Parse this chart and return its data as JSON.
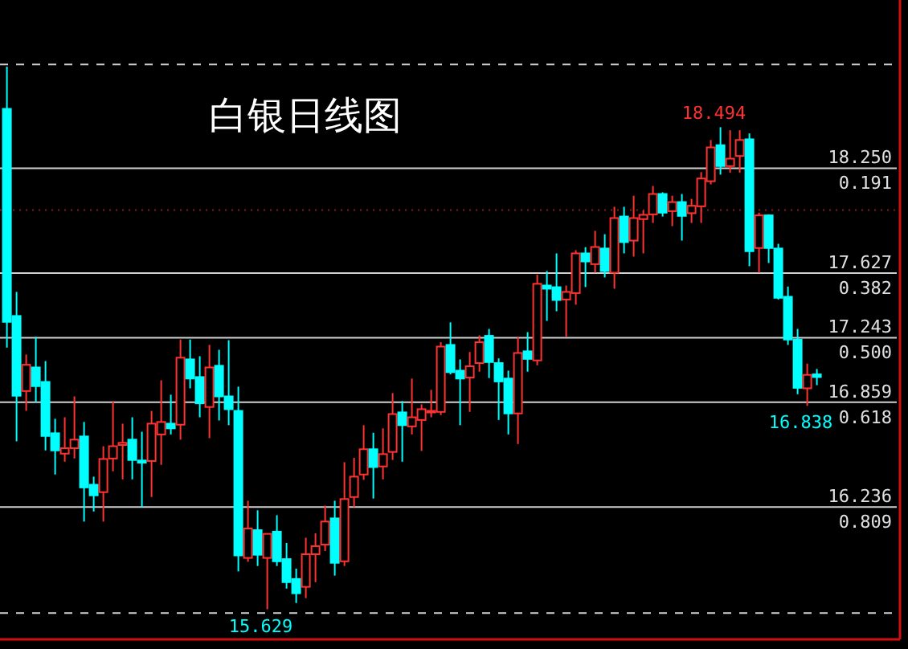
{
  "chart_data": {
    "type": "candlestick",
    "title": "白银日线图",
    "categories": [
      null,
      null,
      null,
      null,
      null,
      null,
      null,
      null,
      null,
      null,
      null,
      null,
      null,
      null,
      null,
      null,
      null,
      null,
      null,
      null,
      null,
      null,
      null,
      null,
      null,
      null,
      null,
      null,
      null,
      null,
      null,
      null,
      null,
      null,
      null,
      null,
      null,
      null,
      null,
      null,
      null,
      null,
      null,
      null,
      null,
      null,
      null,
      null,
      null,
      null,
      null,
      null,
      null,
      null,
      null,
      null,
      null,
      null,
      null,
      null,
      null,
      null,
      null,
      null,
      null,
      null,
      null,
      null,
      null,
      null,
      null,
      null,
      null,
      null,
      null,
      null,
      null,
      null,
      null,
      null,
      null,
      null,
      null,
      null,
      null
    ],
    "ohlc": [
      [
        18.603,
        18.854,
        17.184,
        17.337
      ],
      [
        17.372,
        17.515,
        16.627,
        16.898
      ],
      [
        16.926,
        17.143,
        16.808,
        17.082
      ],
      [
        17.066,
        17.248,
        16.859,
        16.955
      ],
      [
        16.98,
        17.104,
        16.573,
        16.659
      ],
      [
        16.675,
        16.761,
        16.43,
        16.573
      ],
      [
        16.554,
        16.77,
        16.506,
        16.586
      ],
      [
        16.586,
        16.894,
        16.525,
        16.637
      ],
      [
        16.656,
        16.742,
        16.15,
        16.353
      ],
      [
        16.369,
        16.417,
        16.21,
        16.306
      ],
      [
        16.325,
        16.598,
        16.15,
        16.522
      ],
      [
        16.525,
        16.866,
        16.449,
        16.598
      ],
      [
        16.605,
        16.732,
        16.401,
        16.618
      ],
      [
        16.637,
        16.77,
        16.401,
        16.516
      ],
      [
        16.513,
        16.684,
        16.236,
        16.5
      ],
      [
        16.51,
        16.808,
        16.296,
        16.732
      ],
      [
        16.668,
        16.99,
        16.487,
        16.742
      ],
      [
        16.732,
        16.904,
        16.668,
        16.704
      ],
      [
        16.726,
        17.232,
        16.637,
        17.124
      ],
      [
        17.114,
        17.232,
        16.942,
        17.0
      ],
      [
        17.009,
        17.133,
        16.77,
        16.853
      ],
      [
        16.831,
        17.2,
        16.646,
        17.066
      ],
      [
        17.076,
        17.171,
        16.751,
        16.894
      ],
      [
        16.894,
        17.228,
        16.723,
        16.818
      ],
      [
        16.808,
        16.952,
        15.854,
        15.949
      ],
      [
        15.934,
        16.274,
        15.911,
        16.109
      ],
      [
        16.099,
        16.217,
        15.886,
        15.953
      ],
      [
        15.934,
        16.08,
        15.629,
        16.077
      ],
      [
        16.09,
        16.188,
        15.886,
        15.914
      ],
      [
        15.927,
        16.023,
        15.752,
        15.79
      ],
      [
        15.809,
        15.87,
        15.666,
        15.724
      ],
      [
        15.762,
        16.054,
        15.695,
        15.956
      ],
      [
        15.956,
        16.08,
        15.79,
        16.004
      ],
      [
        16.013,
        16.245,
        15.975,
        16.15
      ],
      [
        16.169,
        16.274,
        15.829,
        15.905
      ],
      [
        15.914,
        16.503,
        15.886,
        16.284
      ],
      [
        16.296,
        16.529,
        16.236,
        16.417
      ],
      [
        16.43,
        16.723,
        16.398,
        16.58
      ],
      [
        16.58,
        16.678,
        16.287,
        16.474
      ],
      [
        16.478,
        16.704,
        16.401,
        16.551
      ],
      [
        16.564,
        16.914,
        16.516,
        16.789
      ],
      [
        16.799,
        16.866,
        16.506,
        16.723
      ],
      [
        16.716,
        17.0,
        16.668,
        16.77
      ],
      [
        16.754,
        16.847,
        16.57,
        16.818
      ],
      [
        16.799,
        16.933,
        16.77,
        16.808
      ],
      [
        16.802,
        17.216,
        16.783,
        17.19
      ],
      [
        17.2,
        17.334,
        17.025,
        17.038
      ],
      [
        17.047,
        17.114,
        16.723,
        17.0
      ],
      [
        17.006,
        17.158,
        16.802,
        17.073
      ],
      [
        17.092,
        17.257,
        17.041,
        17.216
      ],
      [
        17.254,
        17.295,
        17.003,
        17.098
      ],
      [
        17.092,
        17.12,
        16.754,
        16.983
      ],
      [
        17.0,
        17.047,
        16.668,
        16.793
      ],
      [
        16.793,
        17.248,
        16.611,
        17.152
      ],
      [
        17.162,
        17.276,
        17.041,
        17.117
      ],
      [
        17.108,
        17.617,
        17.079,
        17.563
      ],
      [
        17.553,
        17.639,
        17.343,
        17.534
      ],
      [
        17.543,
        17.744,
        17.4,
        17.467
      ],
      [
        17.47,
        17.553,
        17.248,
        17.515
      ],
      [
        17.508,
        17.763,
        17.439,
        17.744
      ],
      [
        17.744,
        17.781,
        17.544,
        17.696
      ],
      [
        17.68,
        17.878,
        17.629,
        17.782
      ],
      [
        17.773,
        17.858,
        17.601,
        17.639
      ],
      [
        17.629,
        18.021,
        17.534,
        17.954
      ],
      [
        17.963,
        18.021,
        17.744,
        17.811
      ],
      [
        17.82,
        18.087,
        17.725,
        17.954
      ],
      [
        17.948,
        17.999,
        17.744,
        17.973
      ],
      [
        17.976,
        18.145,
        17.925,
        18.097
      ],
      [
        18.097,
        18.107,
        17.963,
        17.986
      ],
      [
        17.995,
        18.087,
        17.906,
        18.049
      ],
      [
        18.049,
        18.097,
        17.82,
        17.967
      ],
      [
        17.983,
        18.068,
        17.925,
        18.027
      ],
      [
        18.024,
        18.227,
        17.925,
        18.189
      ],
      [
        18.173,
        18.418,
        18.154,
        18.374
      ],
      [
        18.387,
        18.494,
        18.212,
        18.263
      ],
      [
        18.263,
        18.476,
        18.224,
        18.307
      ],
      [
        18.323,
        18.476,
        18.224,
        18.418
      ],
      [
        18.422,
        18.457,
        17.668,
        17.757
      ],
      [
        17.776,
        17.986,
        17.629,
        17.97
      ],
      [
        17.97,
        17.976,
        17.687,
        17.776
      ],
      [
        17.773,
        17.801,
        17.47,
        17.48
      ],
      [
        17.486,
        17.547,
        17.2,
        17.232
      ],
      [
        17.232,
        17.295,
        16.907,
        16.945
      ],
      [
        16.942,
        17.089,
        16.838,
        17.022
      ],
      [
        17.025,
        17.057,
        16.961,
        17.009
      ]
    ],
    "colors": [
      "#00ffff",
      "#00ffff",
      "#ff3232",
      "#00ffff",
      "#00ffff",
      "#00ffff",
      "#ff3232",
      "#ff3232",
      "#00ffff",
      "#00ffff",
      "#ff3232",
      "#ff3232",
      "#ff3232",
      "#00ffff",
      "#00ffff",
      "#ff3232",
      "#ff3232",
      "#00ffff",
      "#ff3232",
      "#00ffff",
      "#00ffff",
      "#ff3232",
      "#00ffff",
      "#00ffff",
      "#00ffff",
      "#ff3232",
      "#00ffff",
      "#ff3232",
      "#00ffff",
      "#00ffff",
      "#00ffff",
      "#ff3232",
      "#ff3232",
      "#ff3232",
      "#00ffff",
      "#ff3232",
      "#ff3232",
      "#ff3232",
      "#00ffff",
      "#ff3232",
      "#ff3232",
      "#00ffff",
      "#ff3232",
      "#ff3232",
      "#ff3232",
      "#ff3232",
      "#00ffff",
      "#00ffff",
      "#ff3232",
      "#ff3232",
      "#00ffff",
      "#00ffff",
      "#00ffff",
      "#ff3232",
      "#00ffff",
      "#ff3232",
      "#00ffff",
      "#00ffff",
      "#ff3232",
      "#ff3232",
      "#00ffff",
      "#ff3232",
      "#00ffff",
      "#ff3232",
      "#00ffff",
      "#ff3232",
      "#ff3232",
      "#ff3232",
      "#00ffff",
      "#ff3232",
      "#00ffff",
      "#ff3232",
      "#ff3232",
      "#ff3232",
      "#00ffff",
      "#ff3232",
      "#ff3232",
      "#00ffff",
      "#ff3232",
      "#00ffff",
      "#00ffff",
      "#00ffff",
      "#00ffff",
      "#ff3232",
      "#00ffff"
    ],
    "ylim": [
      15.45,
      19.25
    ],
    "ref_lines": [
      {
        "axis": "y",
        "value": 18.25,
        "label": "18.250",
        "color": "#d0d0d0"
      },
      {
        "axis": "y",
        "value": 17.627,
        "label": "17.627",
        "color": "#d0d0d0"
      },
      {
        "axis": "y",
        "value": 17.243,
        "label": "17.243",
        "color": "#d0d0d0"
      },
      {
        "axis": "y",
        "value": 16.859,
        "label": "16.859",
        "color": "#d0d0d0"
      },
      {
        "axis": "y",
        "value": 16.236,
        "label": "16.236",
        "color": "#d0d0d0"
      },
      {
        "axis": "y",
        "value": 18.867,
        "color": "#d0d0d0",
        "line_style": "dashed"
      },
      {
        "axis": "y",
        "value": 15.606,
        "color": "#d0d0d0",
        "line_style": "dashed"
      },
      {
        "axis": "y",
        "value": 18.002,
        "color": "#8b1a1a",
        "line_style": "dotted"
      }
    ],
    "annotations": [
      {
        "text": "0.191",
        "y": 18.25
      },
      {
        "text": "0.382",
        "y": 17.627
      },
      {
        "text": "0.500",
        "y": 17.243
      },
      {
        "text": "0.618",
        "y": 16.859
      },
      {
        "text": "0.809",
        "y": 16.236
      },
      {
        "text": "18.494",
        "y": 18.494
      },
      {
        "text": "16.838",
        "y": 16.838
      },
      {
        "text": "15.629",
        "y": 15.629
      }
    ]
  }
}
